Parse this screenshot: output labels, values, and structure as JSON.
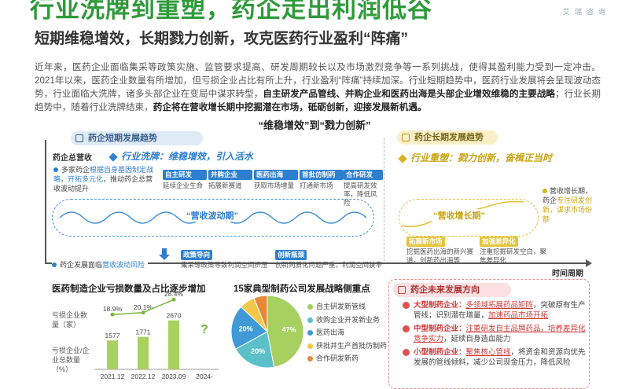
{
  "header": {
    "title": "行业洗牌到重塑，药企走出利润低谷",
    "brand": "艾瑞咨询",
    "subtitle": "短期维稳增效，长期戮力创新，攻克医药行业盈利“阵痛”"
  },
  "intro": {
    "p1": "近年来，医药企业面临集采等政策实施、监管要求提高、研发周期较长以及市场激烈竞争等一系列挑战，使得其盈利能力受到一定冲击。2021年以来，医药企业数量有所增加，但亏损企业占比有所上升，行业盈利“阵痛”持续加深。行业短期趋势中，医药行业发展将会呈现波动态势，行业面临大洗牌，诸多头部企业在变局中谋求转型，",
    "bold1": "自主研发产品管线、并购企业和医药出海是头部企业增效维稳的主要战略",
    "p2": "；行业长期趋势中，随着行业洗牌结束，",
    "bold2": "药企将在营收增长期中挖掘潜在市场，砥砺创新，迎接发展新机遇。"
  },
  "diagram": {
    "heading": "“维稳增效”到“戮力创新”",
    "short_term_title": "药企短期发展趋势",
    "long_term_title": "药企长期发展趋势",
    "y_axis_label": "药企总营收",
    "x_axis_label": "时间周期",
    "short_slogan": "行业洗牌：维稳增效，引入活水",
    "long_slogan": "行业重塑：戮力创新，奋楫正当时",
    "left_note_a": "多家药企",
    "left_note_hl": "根据自身基因制定战略，开拓多元化",
    "left_note_b": "，推动药企总营收波动提升",
    "tags": [
      {
        "title": "自主研发",
        "desc": "延续企业生命"
      },
      {
        "title": "并购企业",
        "desc": "拓展新赛道"
      },
      {
        "title": "医药出海",
        "desc": "获取市场增量"
      },
      {
        "title": "首批仿制药",
        "desc": "打通新市场"
      },
      {
        "title": "合作研发",
        "desc": "提高研发效率，降低风险"
      }
    ],
    "wave_left_label": "“营收波动期”",
    "wave_right_label": "“营收增长期”",
    "right_note_a": "营收增长期，药企",
    "right_note_hl": "专注研发创新，谋求市场份额",
    "bottom_note_a": "药企发展面临",
    "bottom_note_hl": "营收波动风险",
    "bottom_tags": [
      {
        "title": "政策导向",
        "desc": "集采等政策导致利润空间挤压"
      },
      {
        "title": "创新瓶颈",
        "desc": "创新同质化问题严重，利润空间狭窄"
      }
    ],
    "yellow_tags": [
      {
        "title": "拓展新市场",
        "desc": "挖掘医药出海的新兴赛道，创新药出海等"
      },
      {
        "title": "加强差异化",
        "desc": "注重挖掘研发空白，聚焦差异化"
      }
    ]
  },
  "loss_chart": {
    "title": "医药制造企业亏损数量及占比逐步增加",
    "legend_bar": "亏损企业数量（家）",
    "legend_line": "亏损企业/企业总数量（%）",
    "legend_line_lines": [
      "亏损企业/企",
      "业总数量",
      "（%）"
    ],
    "legend_bar_lines": [
      "亏损企业数",
      "量（家）"
    ],
    "unknown_label": "?",
    "chart_data": {
      "type": "bar",
      "categories": [
        "2021.12",
        "2022.12",
        "2023.09",
        "2024-"
      ],
      "series": [
        {
          "name": "亏损企业数量（家）",
          "values": [
            1577,
            1771,
            2670,
            null
          ]
        },
        {
          "name": "亏损企业/企业总数量（%）",
          "values": [
            18.9,
            20.1,
            28.4,
            null
          ]
        }
      ],
      "bar_labels": [
        "1577",
        "1771",
        "2670",
        ""
      ],
      "line_labels": [
        "18.9%",
        "20.1%",
        "28.4%",
        ""
      ]
    }
  },
  "pie_chart": {
    "title": "15家典型制药公司发展战略侧重点",
    "chart_data": {
      "type": "pie",
      "categories": [
        "自主研发新管线",
        "收购企业开发新业务",
        "医药出海",
        "获批并生产首批仿制药",
        "合作研发新药"
      ],
      "values": [
        47,
        20,
        20,
        7,
        6
      ],
      "labels": [
        "47%",
        "20%",
        "20%",
        "",
        ""
      ],
      "colors": [
        "#a6d05f",
        "#5cc0c8",
        "#3f9ad6",
        "#f2c84b",
        "#e8873a"
      ]
    }
  },
  "future": {
    "title": "药企未来发展方向",
    "items": [
      {
        "head": "大型制药企业：",
        "hl": "多领域拓展药品矩阵",
        "rest1": "，突破原有生产管线；识别潜在增量，",
        "hl2": "加速药品市场开拓"
      },
      {
        "head": "中型制药企业：",
        "hl": "注重研发自主品牌药品，培养差异化竞争实力",
        "rest1": "，延续自身造血能力",
        "hl2": ""
      },
      {
        "head": "小型制药企业：",
        "hl": "聚焦核心管线",
        "rest1": "，将资金和资源向优先发展的管线倾斜，减少公司现金压力，降低风险",
        "hl2": ""
      }
    ]
  }
}
